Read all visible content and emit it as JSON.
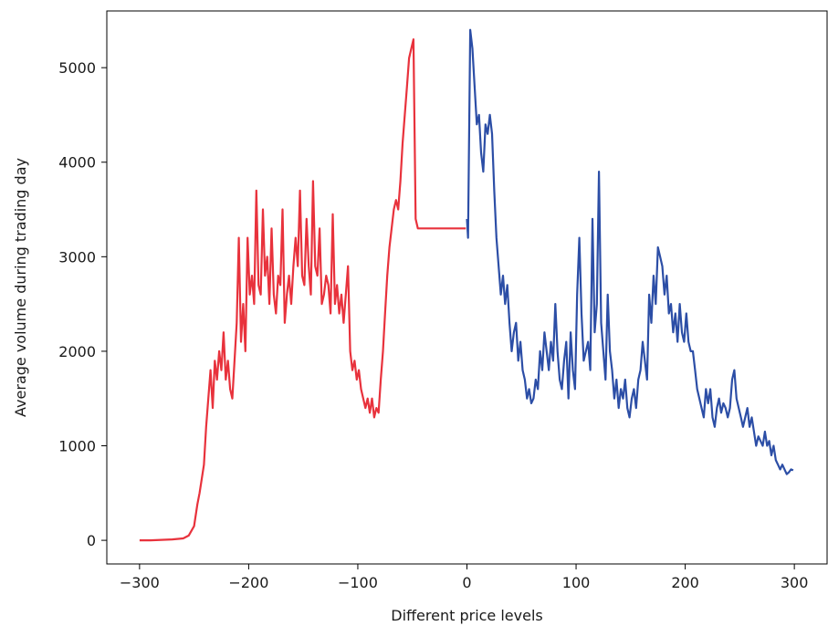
{
  "chart_data": {
    "type": "line",
    "title": "",
    "xlabel": "Different price levels",
    "ylabel": "Average volume during trading day",
    "xlim": [
      -330,
      330
    ],
    "ylim": [
      -250,
      5600
    ],
    "xticks": [
      -300,
      -200,
      -100,
      0,
      100,
      200,
      300
    ],
    "xtick_labels": [
      "−300",
      "−200",
      "−100",
      "0",
      "100",
      "200",
      "300"
    ],
    "yticks": [
      0,
      1000,
      2000,
      3000,
      4000,
      5000
    ],
    "ytick_labels": [
      "0",
      "1000",
      "2000",
      "3000",
      "4000",
      "5000"
    ],
    "grid": false,
    "legend": "none",
    "series": [
      {
        "color": "#e8323c",
        "x": [
          -300,
          -290,
          -280,
          -270,
          -260,
          -255,
          -250,
          -247,
          -245,
          -243,
          -241,
          -239,
          -237,
          -235,
          -233,
          -231,
          -229,
          -227,
          -225,
          -223,
          -221,
          -219,
          -217,
          -215,
          -213,
          -211,
          -209,
          -207,
          -205,
          -203,
          -201,
          -199,
          -197,
          -195,
          -193,
          -191,
          -189,
          -187,
          -185,
          -183,
          -181,
          -179,
          -177,
          -175,
          -173,
          -171,
          -169,
          -167,
          -165,
          -163,
          -161,
          -159,
          -157,
          -155,
          -153,
          -151,
          -149,
          -147,
          -145,
          -143,
          -141,
          -139,
          -137,
          -135,
          -133,
          -131,
          -129,
          -127,
          -125,
          -123,
          -121,
          -119,
          -117,
          -115,
          -113,
          -111,
          -109,
          -107,
          -105,
          -103,
          -101,
          -99,
          -97,
          -95,
          -93,
          -91,
          -89,
          -87,
          -85,
          -83,
          -81,
          -79,
          -77,
          -75,
          -73,
          -71,
          -69,
          -67,
          -65,
          -63,
          -61,
          -59,
          -57,
          -55,
          -53,
          -51,
          -49,
          -47,
          -45,
          -43,
          -41,
          -39,
          -37,
          -35,
          -33,
          -31,
          -29,
          -27,
          -25,
          -23,
          -21,
          -19,
          -17,
          -15,
          -13,
          -11,
          -9,
          -7,
          -5,
          -3,
          -1
        ],
        "y": [
          0,
          0,
          5,
          10,
          20,
          50,
          150,
          380,
          500,
          650,
          800,
          1200,
          1500,
          1800,
          1400,
          1900,
          1700,
          2000,
          1800,
          2200,
          1700,
          1900,
          1600,
          1500,
          1900,
          2300,
          3200,
          2100,
          2500,
          2000,
          3200,
          2600,
          2800,
          2500,
          3700,
          2700,
          2600,
          3500,
          2800,
          3000,
          2500,
          3300,
          2600,
          2400,
          2800,
          2700,
          3500,
          2300,
          2600,
          2800,
          2500,
          2900,
          3200,
          2900,
          3700,
          2800,
          2700,
          3400,
          2900,
          2600,
          3800,
          2900,
          2800,
          3300,
          2500,
          2600,
          2800,
          2700,
          2400,
          3450,
          2500,
          2700,
          2400,
          2600,
          2300,
          2600,
          2900,
          2000,
          1800,
          1900,
          1700,
          1800,
          1600,
          1500,
          1400,
          1500,
          1350,
          1500,
          1300,
          1400,
          1350,
          1700,
          2000,
          2400,
          2800,
          3100,
          3300,
          3500,
          3600,
          3500,
          3800,
          4200,
          4500,
          4800,
          5100,
          5200,
          5300,
          3400,
          3300,
          3300,
          3300,
          3300,
          3300,
          3300,
          3300,
          3300,
          3300,
          3300,
          3300,
          3300,
          3300,
          3300,
          3300,
          3300,
          3300,
          3300,
          3300,
          3300,
          3300,
          3300,
          3300
        ]
      },
      {
        "color": "#2c4ea6",
        "x": [
          0,
          1,
          3,
          5,
          7,
          9,
          11,
          13,
          15,
          17,
          19,
          21,
          23,
          25,
          27,
          29,
          31,
          33,
          35,
          37,
          39,
          41,
          43,
          45,
          47,
          49,
          51,
          53,
          55,
          57,
          59,
          61,
          63,
          65,
          67,
          69,
          71,
          73,
          75,
          77,
          79,
          81,
          83,
          85,
          87,
          89,
          91,
          93,
          95,
          97,
          99,
          101,
          103,
          105,
          107,
          109,
          111,
          113,
          115,
          117,
          119,
          121,
          123,
          125,
          127,
          129,
          131,
          133,
          135,
          137,
          139,
          141,
          143,
          145,
          147,
          149,
          151,
          153,
          155,
          157,
          159,
          161,
          163,
          165,
          167,
          169,
          171,
          173,
          175,
          177,
          179,
          181,
          183,
          185,
          187,
          189,
          191,
          193,
          195,
          197,
          199,
          201,
          203,
          205,
          207,
          209,
          211,
          213,
          215,
          217,
          219,
          221,
          223,
          225,
          227,
          229,
          231,
          233,
          235,
          237,
          239,
          241,
          243,
          245,
          247,
          249,
          251,
          253,
          255,
          257,
          259,
          261,
          263,
          265,
          267,
          269,
          271,
          273,
          275,
          277,
          279,
          281,
          283,
          285,
          287,
          289,
          291,
          293,
          295,
          297,
          299
        ],
        "y": [
          3400,
          3200,
          5400,
          5200,
          4800,
          4400,
          4500,
          4100,
          3900,
          4400,
          4300,
          4500,
          4300,
          3700,
          3200,
          2900,
          2600,
          2800,
          2500,
          2700,
          2300,
          2000,
          2200,
          2300,
          1900,
          2100,
          1800,
          1700,
          1500,
          1600,
          1450,
          1500,
          1700,
          1600,
          2000,
          1800,
          2200,
          2000,
          1800,
          2100,
          1900,
          2500,
          2000,
          1700,
          1600,
          1900,
          2100,
          1500,
          2200,
          1800,
          1600,
          2600,
          3200,
          2400,
          1900,
          2000,
          2100,
          1800,
          3400,
          2200,
          2500,
          3900,
          2300,
          2000,
          1700,
          2600,
          2000,
          1800,
          1500,
          1700,
          1400,
          1600,
          1500,
          1700,
          1400,
          1300,
          1500,
          1600,
          1400,
          1700,
          1800,
          2100,
          1900,
          1700,
          2600,
          2300,
          2800,
          2500,
          3100,
          3000,
          2900,
          2600,
          2800,
          2400,
          2500,
          2200,
          2400,
          2100,
          2500,
          2200,
          2100,
          2400,
          2100,
          2000,
          2000,
          1800,
          1600,
          1500,
          1400,
          1300,
          1600,
          1450,
          1600,
          1300,
          1200,
          1400,
          1500,
          1350,
          1450,
          1400,
          1300,
          1400,
          1700,
          1800,
          1500,
          1400,
          1300,
          1200,
          1300,
          1400,
          1200,
          1300,
          1150,
          1000,
          1100,
          1050,
          1000,
          1150,
          1000,
          1050,
          900,
          1000,
          850,
          800,
          750,
          800,
          750,
          700,
          720,
          750,
          740
        ]
      }
    ]
  }
}
